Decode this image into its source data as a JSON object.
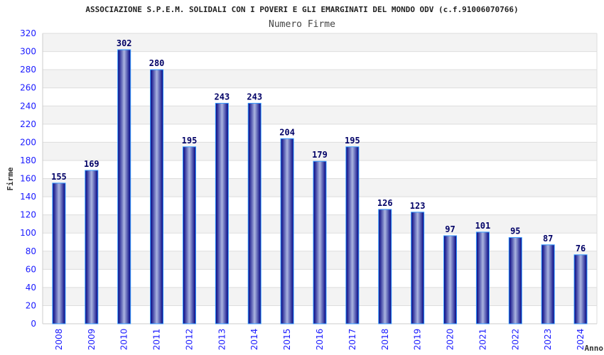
{
  "chart_data": {
    "type": "bar",
    "title": "ASSOCIAZIONE S.P.E.M. SOLIDALI CON I POVERI E GLI EMARGINATI DEL MONDO ODV (c.f.91006070766)",
    "subtitle": "Numero Firme",
    "xlabel": "Anno",
    "ylabel": "Firme",
    "ylim": [
      0,
      320
    ],
    "yticks": [
      0,
      20,
      40,
      60,
      80,
      100,
      120,
      140,
      160,
      180,
      200,
      220,
      240,
      260,
      280,
      300,
      320
    ],
    "categories": [
      "2008",
      "2009",
      "2010",
      "2011",
      "2012",
      "2013",
      "2014",
      "2015",
      "2016",
      "2017",
      "2018",
      "2019",
      "2020",
      "2021",
      "2022",
      "2023",
      "2024"
    ],
    "values": [
      155,
      169,
      302,
      280,
      195,
      243,
      243,
      204,
      179,
      195,
      126,
      123,
      97,
      101,
      95,
      87,
      76
    ],
    "grid": true,
    "colors": {
      "bar_dark": "#000080",
      "bar_light": "#aab4e0",
      "bar_border": "#3399ff",
      "tick": "#1a1aff",
      "label": "#000066"
    }
  }
}
